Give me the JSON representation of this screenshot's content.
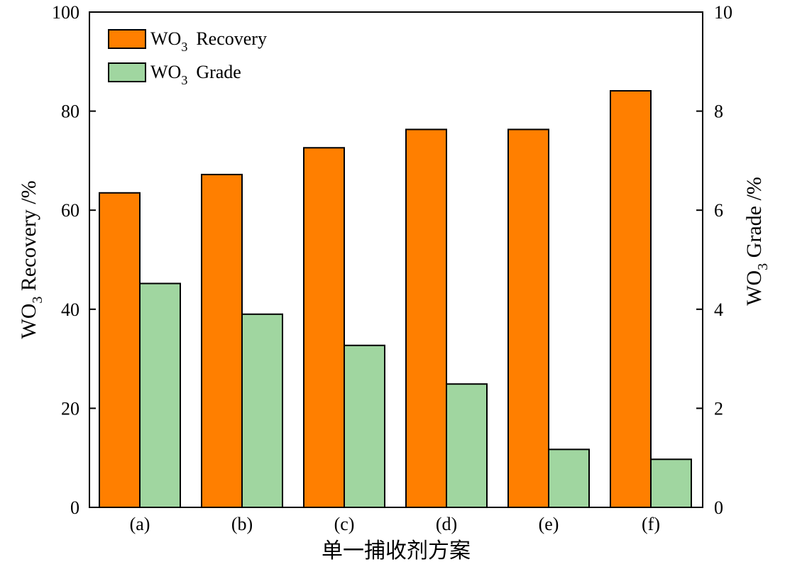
{
  "chart_data": {
    "type": "bar",
    "categories": [
      "(a)",
      "(b)",
      "(c)",
      "(d)",
      "(e)",
      "(f)"
    ],
    "series": [
      {
        "name": "WO3 Recovery",
        "name_parts": {
          "main": "WO",
          "sub": "3",
          "rest": "Recovery"
        },
        "axis": "left",
        "color": "#FF7F00",
        "values": [
          63.5,
          67.2,
          72.6,
          76.3,
          76.3,
          84.1
        ]
      },
      {
        "name": "WO3 Grade",
        "name_parts": {
          "main": "WO",
          "sub": "3",
          "rest": "Grade"
        },
        "axis": "right",
        "color": "#A0D6A0",
        "values": [
          4.52,
          3.9,
          3.27,
          2.49,
          1.17,
          0.97
        ]
      }
    ],
    "xlabel": "单一捕收剂方案",
    "ylabel": {
      "main": "WO",
      "sub": "3",
      "rest": " Recovery /%"
    },
    "y2label": {
      "main": "WO",
      "sub": "3",
      "rest": " Grade /%"
    },
    "ylim": [
      0,
      100
    ],
    "y2lim": [
      0,
      10
    ],
    "yticks": [
      "0",
      "20",
      "40",
      "60",
      "80",
      "100"
    ],
    "y2ticks": [
      "0",
      "2",
      "4",
      "6",
      "8",
      "10"
    ],
    "legend_position": "top-left",
    "grid": false
  }
}
